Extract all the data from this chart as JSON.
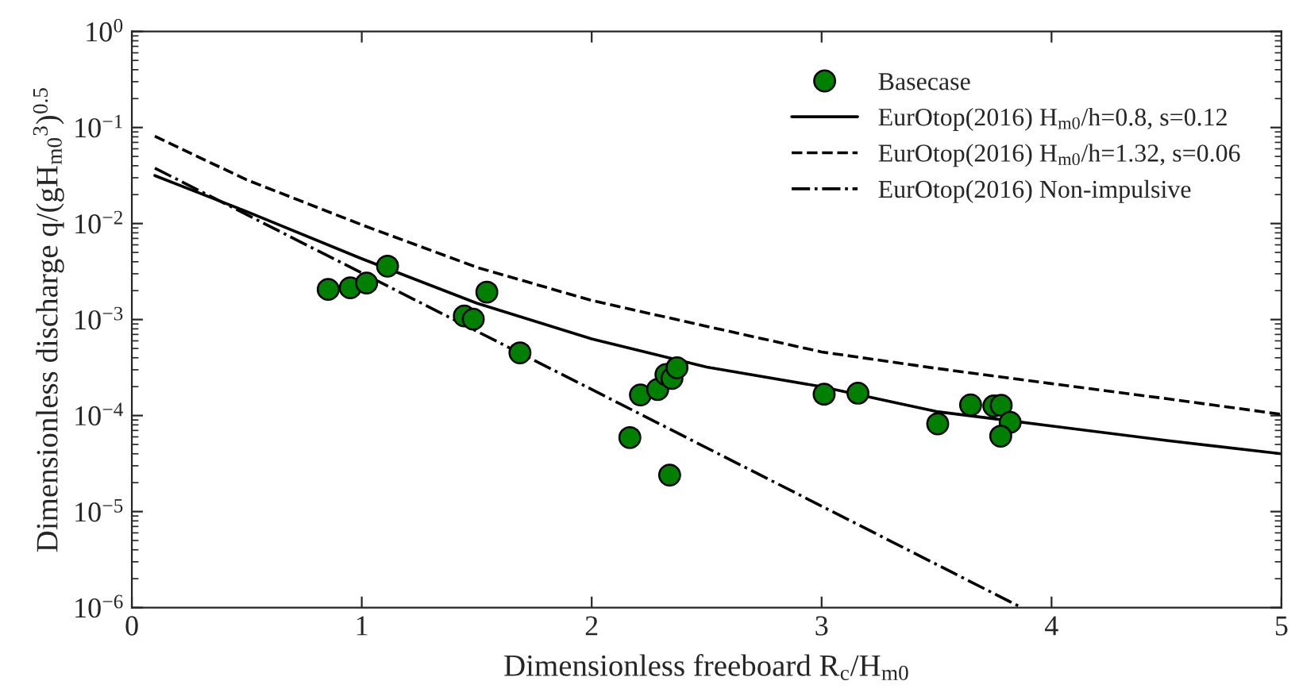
{
  "chart_data": {
    "type": "scatter",
    "xlabel": "Dimensionless freeboard R$_{c}$/H$_{m0}$",
    "ylabel": "Dimensionless discharge q/(gH$_{m0}$$^{3}$)$^{0.5}$",
    "log": "y",
    "xlim": [
      0,
      5
    ],
    "xticks": [
      0,
      1,
      2,
      3,
      4,
      5
    ],
    "ylim": [
      1e-06,
      1
    ],
    "yticks": [
      {
        "value": 1e-06,
        "label": "10$^{−6}$"
      },
      {
        "value": 1e-05,
        "label": "10$^{−5}$"
      },
      {
        "value": 0.0001,
        "label": "10$^{−4}$"
      },
      {
        "value": 0.001,
        "label": "10$^{−3}$"
      },
      {
        "value": 0.01,
        "label": "10$^{−2}$"
      },
      {
        "value": 0.1,
        "label": "10$^{−1}$"
      },
      {
        "value": 1,
        "label": "10$^{0}$"
      }
    ],
    "grid": false,
    "legend": "top right",
    "series": [
      {
        "name": "Basecase",
        "marker": "circle",
        "color": "#007f00",
        "x": [
          0.854,
          0.95,
          1.021,
          1.112,
          1.446,
          1.485,
          1.544,
          1.688,
          2.166,
          2.212,
          2.287,
          2.323,
          2.349,
          2.371,
          2.339,
          3.011,
          3.158,
          3.505,
          3.648,
          3.749,
          3.781,
          3.82,
          3.779
        ],
        "values": [
          0.00206,
          0.00214,
          0.0024,
          0.0036,
          0.00109,
          0.00101,
          0.00193,
          0.00045,
          5.9e-05,
          0.000164,
          0.000187,
          0.000267,
          0.000244,
          0.000315,
          2.4e-05,
          0.000167,
          0.000171,
          8.2e-05,
          0.000129,
          0.000126,
          0.000128,
          8.5e-05,
          6.1e-05
        ]
      },
      {
        "name": "EurOtop(2016) H$_{m0}$/h=0.8, s=0.12",
        "type": "line",
        "line_style": "solid",
        "marker": "none",
        "color": "#000000",
        "x": [
          0.1,
          0.5,
          1,
          1.5,
          2,
          2.5,
          3,
          3.5,
          4,
          4.5,
          5
        ],
        "values": [
          0.0316,
          0.0133,
          0.0043,
          0.00148,
          0.00063,
          0.00032,
          0.0002,
          0.00011,
          7.8e-05,
          5.5e-05,
          4e-05
        ]
      },
      {
        "name": "EurOtop(2016) H$_{m0}$/h=1.32, s=0.06",
        "type": "line",
        "line_style": "dashed",
        "marker": "none",
        "color": "#000000",
        "x": [
          0.1,
          0.5,
          1,
          1.5,
          2,
          2.5,
          3,
          3.5,
          4,
          4.5,
          5
        ],
        "values": [
          0.081,
          0.0285,
          0.0097,
          0.0035,
          0.00158,
          0.00085,
          0.00046,
          0.00031,
          0.000215,
          0.00015,
          0.000103
        ]
      },
      {
        "name": "EurOtop(2016) Non-impulsive",
        "type": "line",
        "line_style": "dashdot",
        "marker": "none",
        "color": "#000000",
        "x": [
          0.1,
          2,
          3.87
        ],
        "values": [
          0.0378,
          0.000187,
          1e-06
        ]
      }
    ]
  }
}
